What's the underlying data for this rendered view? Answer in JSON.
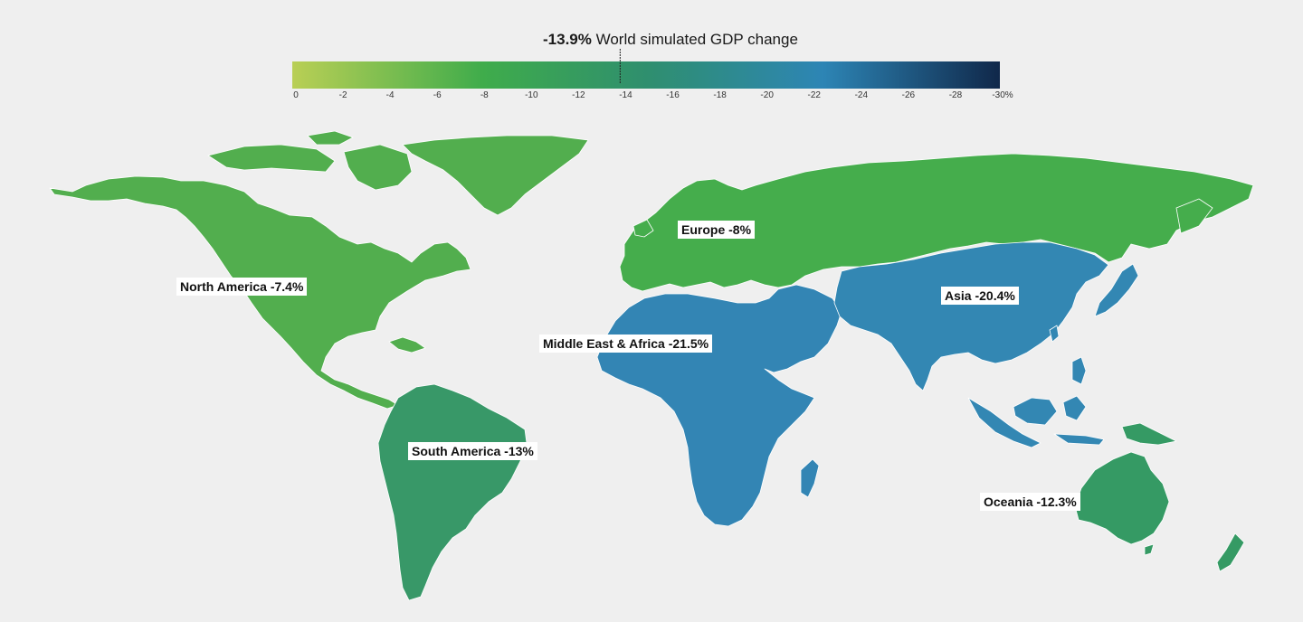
{
  "colors": {
    "background": "#efefef",
    "scale_start": "#b9cf55",
    "scale_green": "#3fac4b",
    "scale_teal": "#2f8f6e",
    "scale_blue": "#2d85b5",
    "scale_end": "#10284a",
    "border": "#ffffff"
  },
  "legend": {
    "world_value": "-13.9%",
    "world_label": "World simulated GDP change",
    "world_numeric": -13.9,
    "scale_min": 0,
    "scale_max": -30,
    "ticks": [
      "0",
      "-2",
      "-4",
      "-6",
      "-8",
      "-10",
      "-12",
      "-14",
      "-16",
      "-18",
      "-20",
      "-22",
      "-24",
      "-26",
      "-28",
      "-30%"
    ]
  },
  "regions": [
    {
      "key": "north_america",
      "label": "North America -7.4%",
      "value": -7.4,
      "color": "#52ae4e"
    },
    {
      "key": "europe",
      "label": "Europe -8%",
      "value": -8.0,
      "color": "#45ad4c"
    },
    {
      "key": "asia",
      "label": "Asia -20.4%",
      "value": -20.4,
      "color": "#3387b3"
    },
    {
      "key": "middle_east_africa",
      "label": "Middle East & Africa -21.5%",
      "value": -21.5,
      "color": "#3385b4"
    },
    {
      "key": "south_america",
      "label": "South America -13%",
      "value": -13.0,
      "color": "#389868"
    },
    {
      "key": "oceania",
      "label": "Oceania -12.3%",
      "value": -12.3,
      "color": "#359a64"
    }
  ]
}
